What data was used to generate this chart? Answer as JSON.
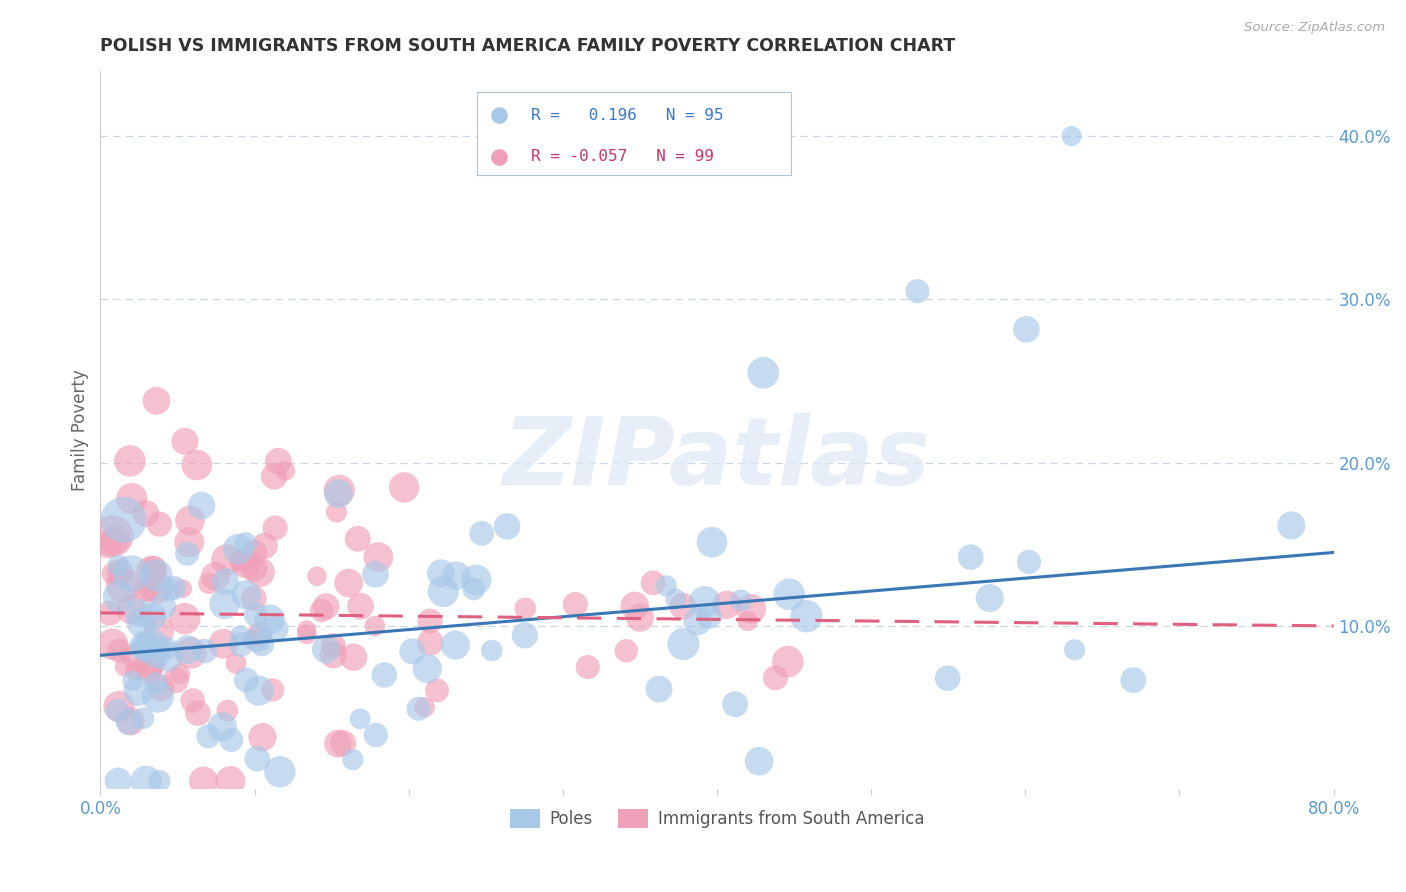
{
  "title": "POLISH VS IMMIGRANTS FROM SOUTH AMERICA FAMILY POVERTY CORRELATION CHART",
  "source": "Source: ZipAtlas.com",
  "ylabel": "Family Poverty",
  "watermark": "ZIPatlas",
  "xlim": [
    0.0,
    0.8
  ],
  "ylim": [
    0.0,
    0.44
  ],
  "yticks_right": [
    0.1,
    0.2,
    0.3,
    0.4
  ],
  "ytick_labels_right": [
    "10.0%",
    "20.0%",
    "30.0%",
    "40.0%"
  ],
  "blue_R": "0.196",
  "blue_N": "95",
  "pink_R": "-0.057",
  "pink_N": "99",
  "blue_color": "#a8c8e8",
  "pink_color": "#f0a0b8",
  "blue_line_color": "#3a78b5",
  "pink_line_color": "#e06080",
  "legend_label_blue": "Poles",
  "legend_label_pink": "Immigrants from South America",
  "axis_color": "#5b9bd5",
  "grid_color": "#c8d8e8",
  "title_color": "#333333",
  "blue_line_start": 0.082,
  "blue_line_end": 0.145,
  "pink_line_start": 0.108,
  "pink_line_end": 0.1
}
